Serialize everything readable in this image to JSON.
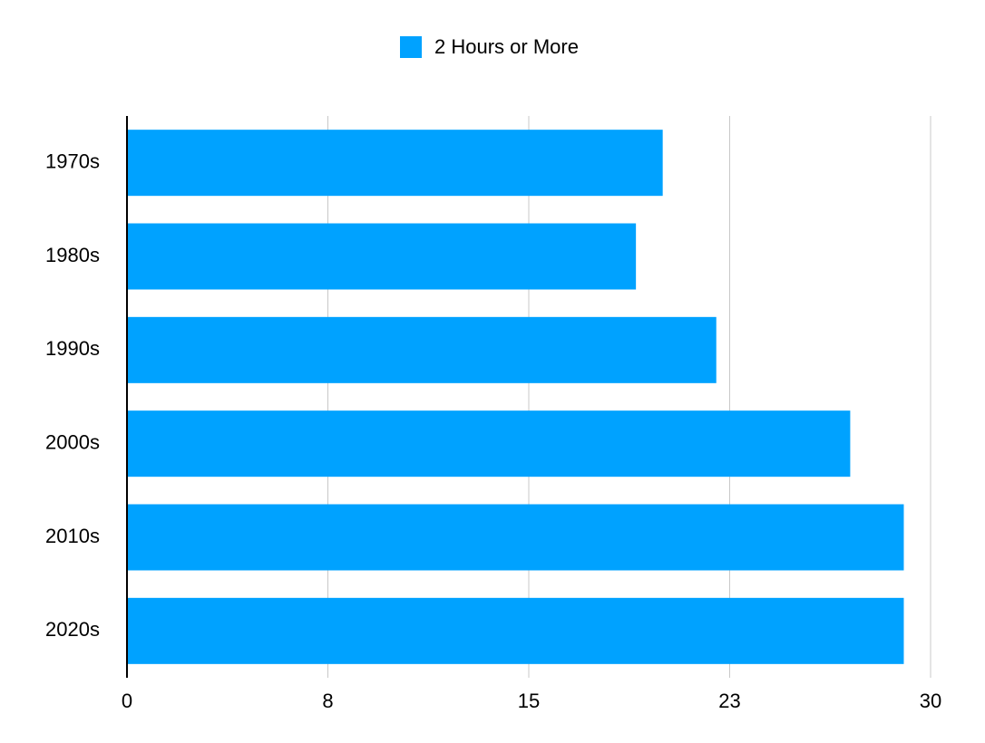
{
  "chart_data": {
    "type": "hbar",
    "categories": [
      "1970s",
      "1980s",
      "1990s",
      "2000s",
      "2010s",
      "2020s"
    ],
    "series": [
      {
        "name": "2 Hours or More",
        "color": "#00a2ff",
        "values": [
          20,
          19,
          22,
          27,
          29,
          29
        ]
      }
    ],
    "xlim": [
      0,
      30
    ],
    "xticks": [
      0,
      {
        "value": 7.5,
        "label": "8"
      },
      15,
      {
        "value": 22.5,
        "label": "23"
      },
      30
    ],
    "grid": true,
    "legend": "top"
  }
}
